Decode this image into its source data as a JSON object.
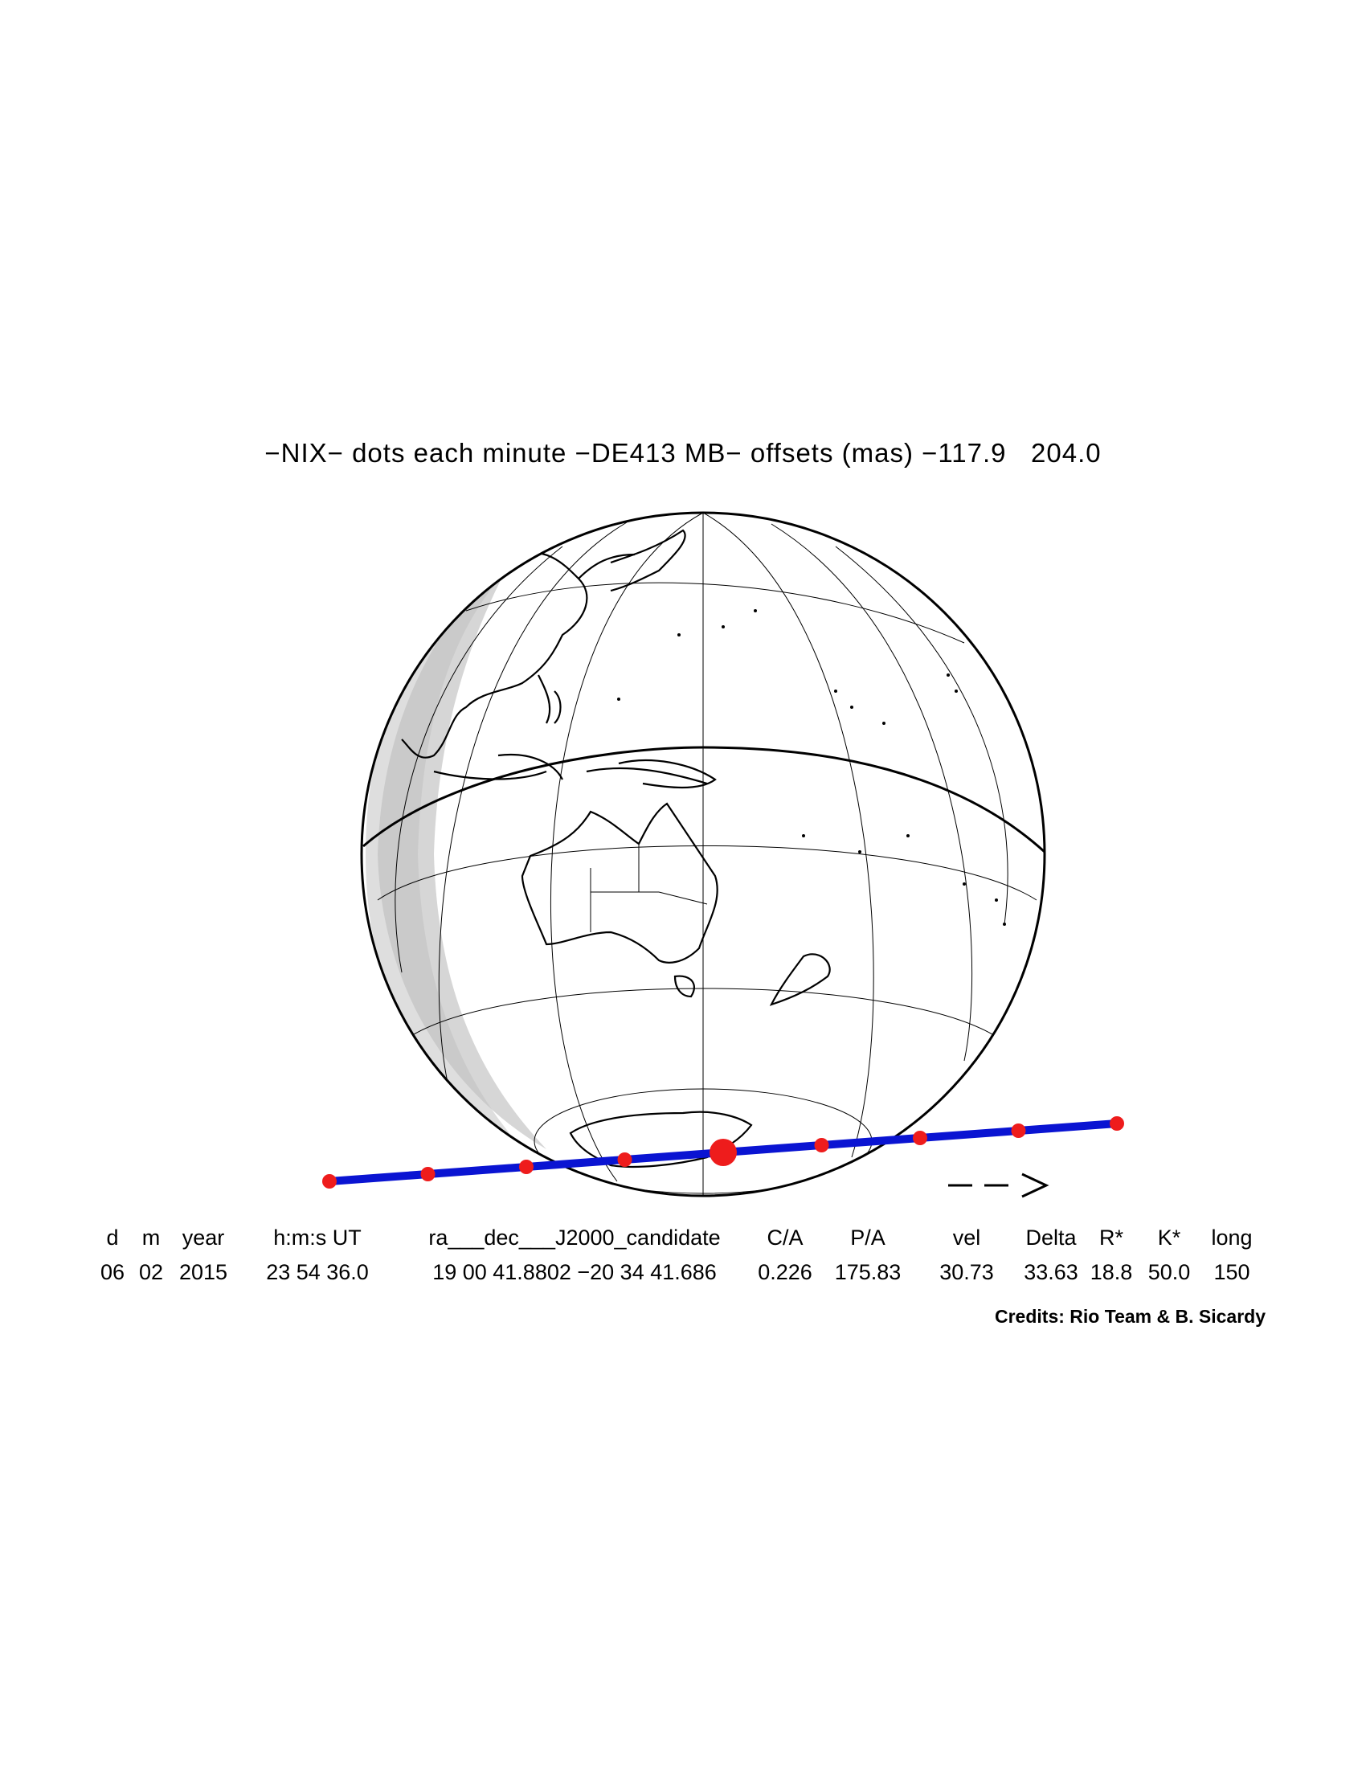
{
  "title": "−NIX− dots each minute −DE413 MB− offsets (mas) −117.9   204.0",
  "direction_arrow": "− −>",
  "table": {
    "headers": [
      "d",
      "m",
      "year",
      "h:m:s UT",
      "ra___dec___J2000_candidate",
      "C/A",
      "P/A",
      "vel",
      "Delta",
      "R*",
      "K*",
      "long"
    ],
    "values": [
      "06",
      "02",
      "2015",
      "23 54 36.0",
      "19 00 41.8802 −20 34 41.686",
      "0.226",
      "175.83",
      "30.73",
      "33.63",
      "18.8",
      "50.0",
      "150"
    ]
  },
  "credits": "Credits: Rio Team & B. Sicardy",
  "colors": {
    "track": "#0a14d2",
    "dots": "#ee1c1c",
    "shadow": "#d4d4d4"
  },
  "occultation": {
    "dot_interval_minutes": 1,
    "dot_count": 9,
    "closest_approach_dot_index": 4
  }
}
